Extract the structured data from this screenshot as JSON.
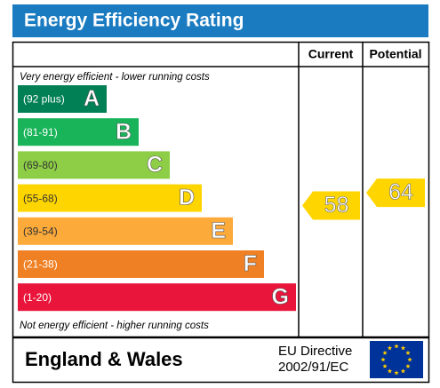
{
  "title": "Energy Efficiency Rating",
  "headers": {
    "current": "Current",
    "potential": "Potential"
  },
  "top_note": "Very energy efficient - lower running costs",
  "bottom_note": "Not energy efficient - higher running costs",
  "bands": [
    {
      "range": "(92 plus)",
      "letter": "A",
      "color": "#008054"
    },
    {
      "range": "(81-91)",
      "letter": "B",
      "color": "#19b459"
    },
    {
      "range": "(69-80)",
      "letter": "C",
      "color": "#8dce46"
    },
    {
      "range": "(55-68)",
      "letter": "D",
      "color": "#ffd500"
    },
    {
      "range": "(39-54)",
      "letter": "E",
      "color": "#fcaa3a"
    },
    {
      "range": "(21-38)",
      "letter": "F",
      "color": "#ef8023"
    },
    {
      "range": "(1-20)",
      "letter": "G",
      "color": "#e9153b"
    }
  ],
  "current": 58,
  "potential": 64,
  "footer": {
    "region": "England & Wales",
    "directive_line1": "EU Directive",
    "directive_line2": "2002/91/EC"
  }
}
